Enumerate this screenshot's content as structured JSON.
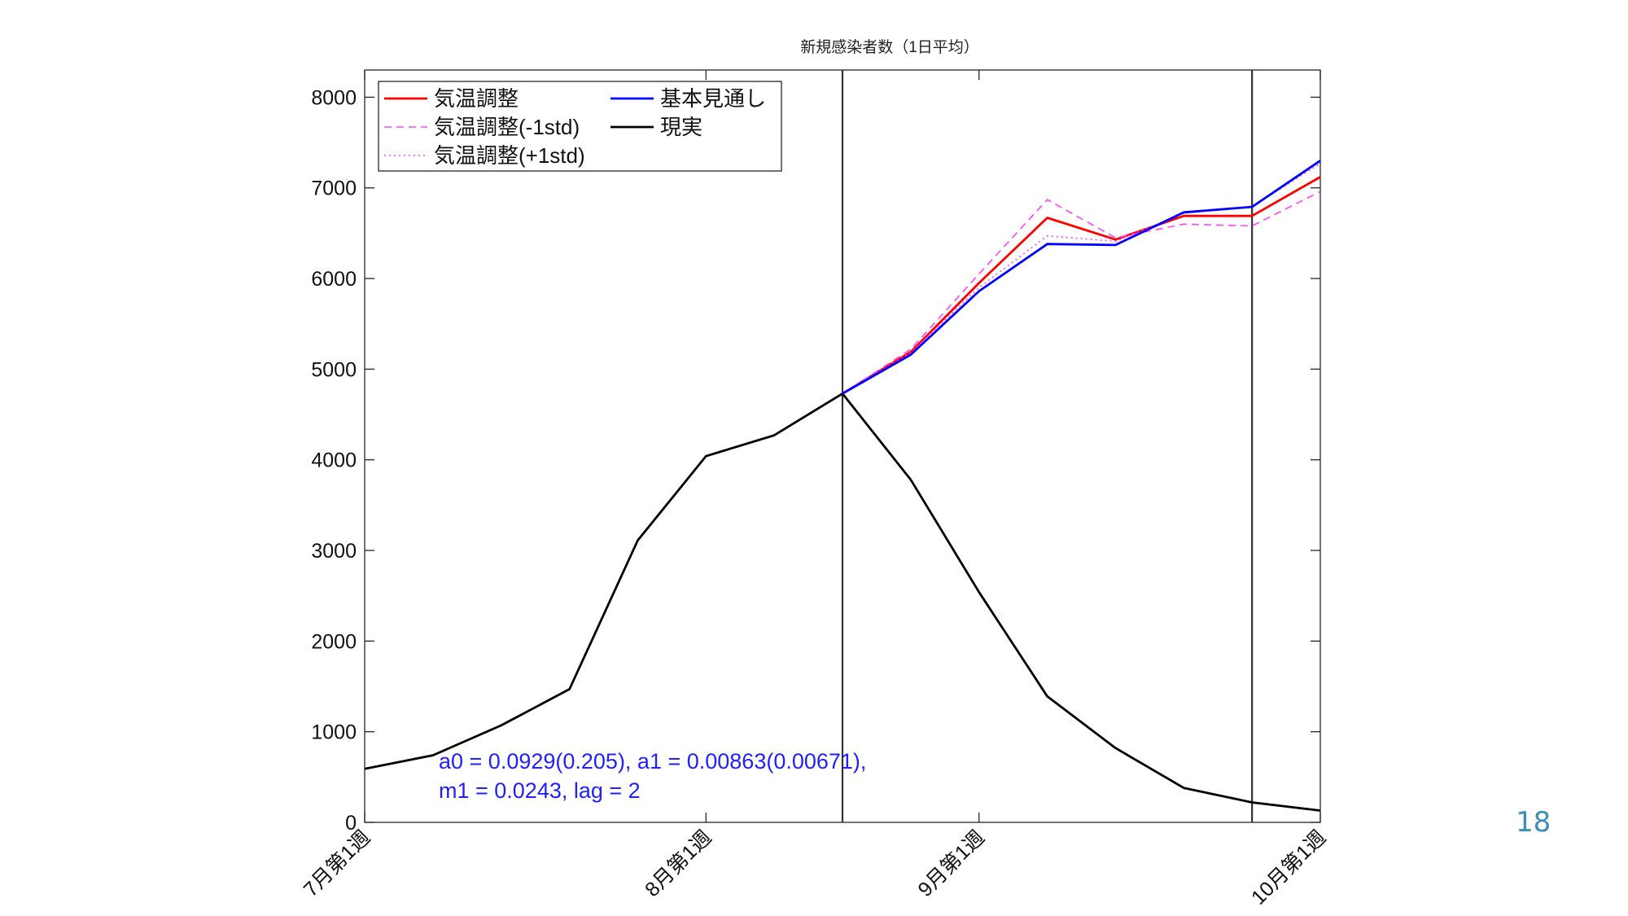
{
  "page_number": "18",
  "chart_data": {
    "type": "line",
    "title": "新規感染者数（1日平均）",
    "xlabel": "",
    "ylabel": "",
    "ylim": [
      0,
      8300
    ],
    "yticks": [
      0,
      1000,
      2000,
      3000,
      4000,
      5000,
      6000,
      7000,
      8000
    ],
    "xlim": [
      0,
      14
    ],
    "xticks": [
      {
        "pos": 0,
        "label": "7月第1週"
      },
      {
        "pos": 5,
        "label": "8月第1週"
      },
      {
        "pos": 9,
        "label": "9月第1週"
      },
      {
        "pos": 14,
        "label": "10月第1週"
      }
    ],
    "vlines": [
      7,
      13
    ],
    "grid": false,
    "legend": {
      "placement": "top-left",
      "columns": 2
    },
    "series": [
      {
        "name": "気温調整",
        "color": "#ff0000",
        "style": "solid",
        "x": [
          7,
          8,
          9,
          10,
          11,
          12,
          13,
          14
        ],
        "y": [
          4730,
          5190,
          5950,
          6670,
          6430,
          6690,
          6690,
          7120
        ]
      },
      {
        "name": "気温調整(-1std)",
        "color": "#ff44ff",
        "style": "dashed",
        "x": [
          7,
          8,
          9,
          10,
          11,
          12,
          13,
          14
        ],
        "y": [
          4730,
          5220,
          6050,
          6870,
          6450,
          6600,
          6580,
          6960
        ]
      },
      {
        "name": "気温調整(+1std)",
        "color": "#ff44ff",
        "style": "dotted",
        "x": [
          7,
          8,
          9,
          10,
          11,
          12,
          13,
          14
        ],
        "y": [
          4730,
          5180,
          5900,
          6470,
          6410,
          6720,
          6790,
          7270
        ]
      },
      {
        "name": "基本見通し",
        "color": "#0000ff",
        "style": "solid",
        "x": [
          7,
          8,
          9,
          10,
          11,
          12,
          13,
          14
        ],
        "y": [
          4730,
          5160,
          5860,
          6380,
          6370,
          6730,
          6790,
          7300
        ]
      },
      {
        "name": "現実",
        "color": "#000000",
        "style": "solid",
        "x": [
          0,
          1,
          2,
          3,
          4,
          5,
          6,
          7,
          8,
          9,
          10,
          11,
          12,
          13,
          14
        ],
        "y": [
          590,
          740,
          1070,
          1470,
          3110,
          4040,
          4270,
          4730,
          3780,
          2540,
          1390,
          820,
          380,
          220,
          130
        ]
      }
    ],
    "annotation": {
      "line1": "a0 = 0.0929(0.205), a1 = 0.00863(0.00671),",
      "line2": "m1 = 0.0243, lag = 2",
      "color": "#1f1fff"
    }
  }
}
